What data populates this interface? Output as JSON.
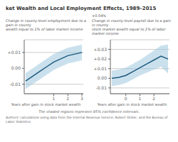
{
  "title": "ket Wealth and Local Employment Effects, 1989–2015",
  "footnote": "The shaded regions represent 95% confidence intervals.",
  "source": "Authors' calculations using data from the Internal Revenue Service, Robert Shiller, and the Bureau of Labor Statistics.",
  "chart_data": [
    {
      "type": "line",
      "subtitle": [
        "Change in county-level employment due to a gain in county",
        "wealth equal to 1% of labor market income"
      ],
      "xlabel": "Years after gain in stock market wealth",
      "x": [
        -1.0,
        -0.5,
        0.0,
        0.5,
        1.0,
        1.5,
        2.0,
        2.5,
        3.0
      ],
      "series": [
        {
          "type": "area",
          "color": "#9ec9de",
          "low": [
            -0.013,
            -0.01,
            -0.007,
            -0.004,
            -0.001,
            0.001,
            0.003,
            0.004,
            0.005
          ],
          "high": [
            -0.003,
            0.0,
            0.003,
            0.006,
            0.009,
            0.011,
            0.013,
            0.014,
            0.015
          ]
        },
        {
          "type": "line",
          "color": "#1e5a7e",
          "values": [
            -0.008,
            -0.005,
            -0.002,
            0.001,
            0.004,
            0.006,
            0.008,
            0.009,
            0.01
          ]
        }
      ],
      "xlim": [
        -1.1,
        3.1
      ],
      "xticks": [
        1,
        2,
        3
      ],
      "ylim": [
        -0.016,
        0.018
      ],
      "yticks": [
        -0.01,
        {
          "value": 0.0,
          "label": "0.00"
        },
        {
          "value": 0.01,
          "label": "+0.01"
        }
      ],
      "grid": true
    },
    {
      "type": "line",
      "annotation": "+0.04%",
      "subtitle": [
        "Change in county-level payroll due to a gain in county",
        "stock market wealth equal to 1% of labor market income"
      ],
      "xlabel": "Years after gain in stock market wealth",
      "x": [
        -1.0,
        -0.5,
        0.0,
        0.5,
        1.0,
        1.5,
        2.0,
        2.5,
        3.0
      ],
      "series": [
        {
          "type": "area",
          "color": "#9ec9de",
          "low": [
            -0.008,
            -0.007,
            -0.005,
            -0.001,
            0.003,
            0.006,
            0.009,
            0.012,
            0.005
          ],
          "high": [
            0.008,
            0.009,
            0.011,
            0.015,
            0.019,
            0.024,
            0.029,
            0.034,
            0.035
          ]
        },
        {
          "type": "line",
          "color": "#1e5a7e",
          "values": [
            0.0,
            0.001,
            0.003,
            0.007,
            0.011,
            0.015,
            0.019,
            0.023,
            0.02
          ]
        }
      ],
      "xlim": [
        -1.1,
        3.1
      ],
      "xticks": [
        0,
        1,
        2
      ],
      "ylim": [
        -0.016,
        0.04
      ],
      "yticks": [
        -0.01,
        {
          "value": 0.0,
          "label": "0.00"
        },
        {
          "value": 0.01,
          "label": "+0.01"
        },
        {
          "value": 0.02,
          "label": "+0.02"
        },
        {
          "value": 0.03,
          "label": "+0.03"
        }
      ],
      "grid": true
    }
  ]
}
